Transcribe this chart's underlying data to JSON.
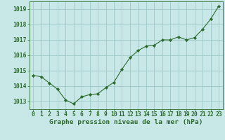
{
  "x": [
    0,
    1,
    2,
    3,
    4,
    5,
    6,
    7,
    8,
    9,
    10,
    11,
    12,
    13,
    14,
    15,
    16,
    17,
    18,
    19,
    20,
    21,
    22,
    23
  ],
  "y": [
    1014.7,
    1014.6,
    1014.2,
    1013.8,
    1013.1,
    1012.85,
    1013.3,
    1013.45,
    1013.5,
    1013.9,
    1014.25,
    1015.1,
    1015.85,
    1016.3,
    1016.6,
    1016.65,
    1017.0,
    1017.0,
    1017.2,
    1017.0,
    1017.15,
    1017.7,
    1018.35,
    1019.2
  ],
  "ylim": [
    1012.5,
    1019.5
  ],
  "yticks": [
    1013,
    1014,
    1015,
    1016,
    1017,
    1018,
    1019
  ],
  "xlim": [
    -0.5,
    23.5
  ],
  "xticks": [
    0,
    1,
    2,
    3,
    4,
    5,
    6,
    7,
    8,
    9,
    10,
    11,
    12,
    13,
    14,
    15,
    16,
    17,
    18,
    19,
    20,
    21,
    22,
    23
  ],
  "xlabel": "Graphe pression niveau de la mer (hPa)",
  "line_color": "#2d6a2d",
  "marker": "D",
  "marker_size": 2.2,
  "background_color": "#c8e8e8",
  "grid_color": "#a0c8c8",
  "tick_color": "#2d6a2d",
  "label_color": "#2d6a2d",
  "xlabel_fontsize": 6.8,
  "tick_fontsize": 5.8
}
